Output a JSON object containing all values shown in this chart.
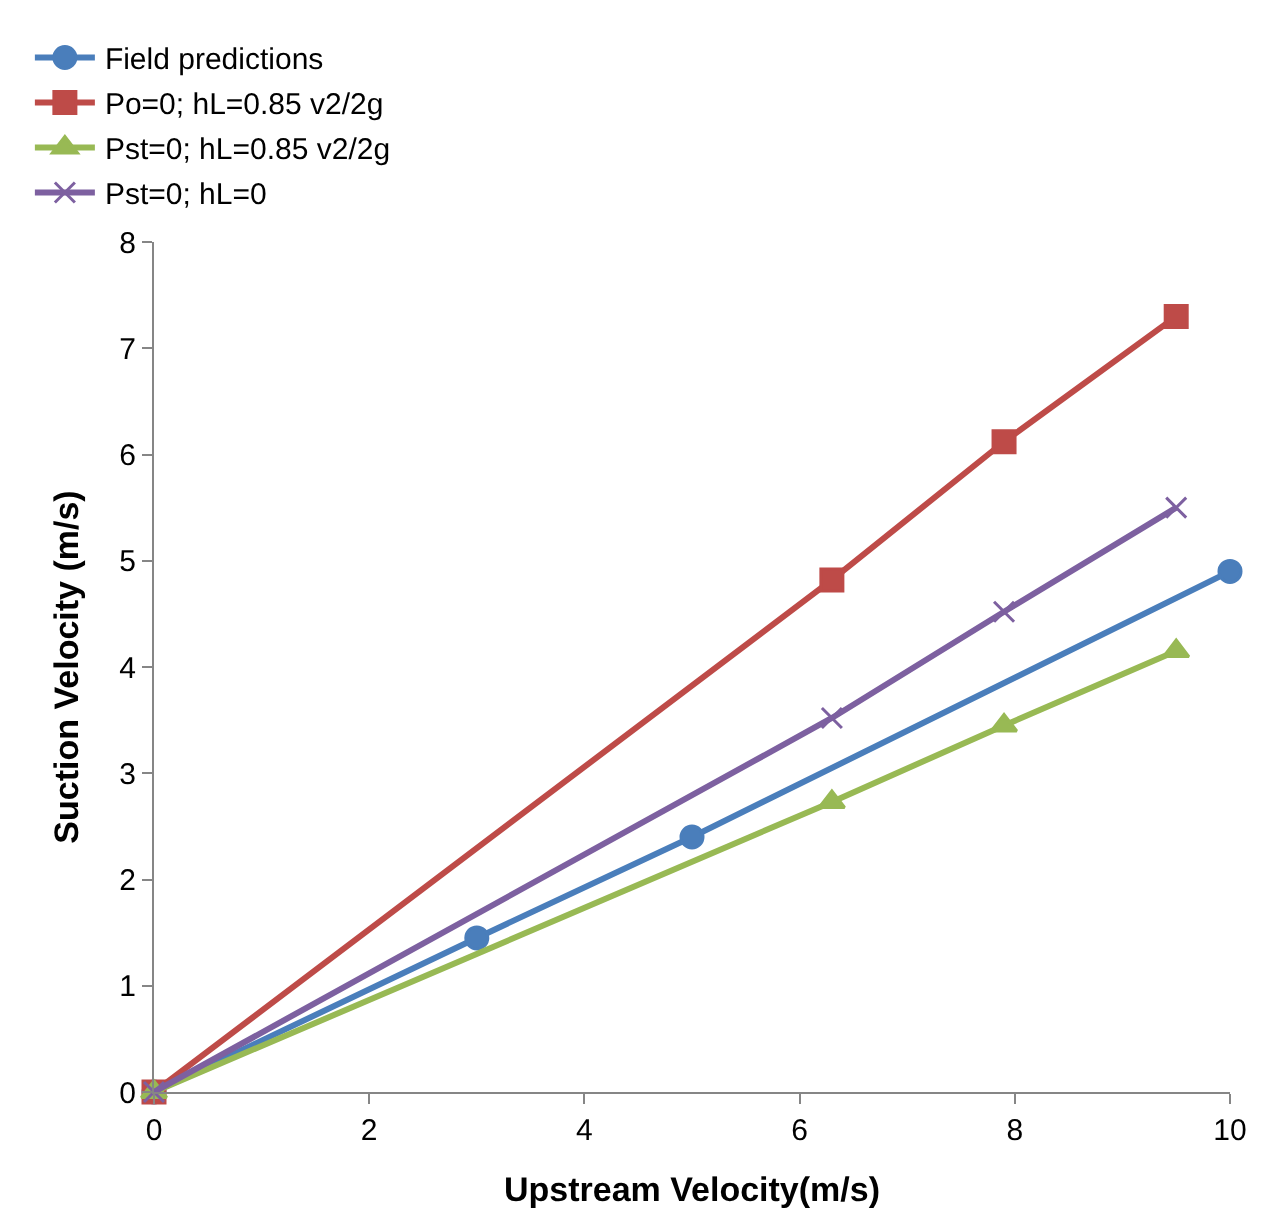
{
  "chart_data": {
    "type": "line",
    "xlabel": "Upstream Velocity(m/s)",
    "ylabel": "Suction Velocity (m/s)",
    "xlim": [
      0,
      10
    ],
    "xticks": [
      0,
      2,
      4,
      6,
      8,
      10
    ],
    "ylim": [
      0,
      8
    ],
    "yticks": [
      0,
      1,
      2,
      3,
      4,
      5,
      6,
      7,
      8
    ],
    "legend": "top",
    "series": [
      {
        "name": "Field predictions",
        "color": "#4a7ebb",
        "marker": "circle",
        "x": [
          0,
          3,
          5,
          10
        ],
        "values": [
          0,
          1.45,
          2.4,
          4.9
        ]
      },
      {
        "name": "Po=0; hL=0.85 v2/2g",
        "color": "#be4b48",
        "marker": "square",
        "x": [
          0,
          6.3,
          7.9,
          9.5
        ],
        "values": [
          0,
          4.82,
          6.12,
          7.3
        ]
      },
      {
        "name": "Pst=0; hL=0.85 v2/2g",
        "color": "#98b954",
        "marker": "triangle",
        "x": [
          0,
          6.3,
          7.9,
          9.5
        ],
        "values": [
          0,
          2.73,
          3.45,
          4.15
        ]
      },
      {
        "name": "Pst=0; hL=0",
        "color": "#7d60a0",
        "marker": "cross",
        "x": [
          0,
          6.3,
          7.9,
          9.5
        ],
        "values": [
          0,
          3.52,
          4.52,
          5.5
        ]
      }
    ]
  }
}
